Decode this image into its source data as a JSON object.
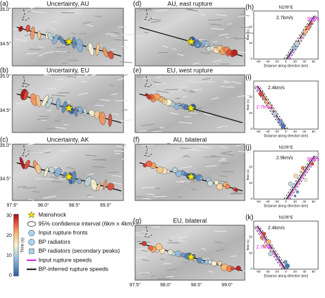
{
  "map_panels": [
    {
      "letter": "(a)",
      "title": "Uncertainty, AU"
    },
    {
      "letter": "(b)",
      "title": "Uncertainty, EU"
    },
    {
      "letter": "(c)",
      "title": "Uncertainty, AK"
    },
    {
      "letter": "(d)",
      "title": "AU, east rupture"
    },
    {
      "letter": "(e)",
      "title": "EU, west rupture"
    },
    {
      "letter": "(f)",
      "title": "AU, bilateral"
    },
    {
      "letter": "(g)",
      "title": "EU, bilateral"
    }
  ],
  "map_axes": {
    "lat_ticks": [
      "35.0°",
      "34.5°"
    ],
    "lon_ticks": [
      "97.5°",
      "98.0°",
      "98.5°",
      "99.0°"
    ]
  },
  "time_panels": [
    {
      "letter": "(h)",
      "direction": "N106°E",
      "speed_labels": [
        "2.7km/s",
        "3km/s"
      ]
    },
    {
      "letter": "(i)",
      "speed_labels": [
        "2.4km/s",
        "2.7km/s"
      ]
    },
    {
      "letter": "(j)",
      "direction": "N106°E",
      "speed_labels": [
        "2.9km/s",
        "3km/s"
      ]
    },
    {
      "letter": "(k)",
      "direction": "N106°E",
      "speed_labels": [
        "2.4km/s",
        "2.7km/s"
      ]
    }
  ],
  "time_axes": {
    "y_label": "Time (s)",
    "x_label": "Distance along direction (km)",
    "x_ticks": [
      "-60",
      "-40",
      "-20",
      "0",
      "20",
      "40",
      "60"
    ],
    "y_ticks": [
      "0",
      "10",
      "20"
    ]
  },
  "colorbar": {
    "label": "Time (s)",
    "ticks": [
      "30",
      "20",
      "10",
      "0"
    ]
  },
  "legend": [
    "Mainshock",
    "95% confidence interval (6km x 4km)",
    "Input rupture fronts",
    "BP radiators",
    "BP radiators (secondary peaks)",
    "Input rupture speeds",
    "BP-inferred rupture speeds"
  ]
}
